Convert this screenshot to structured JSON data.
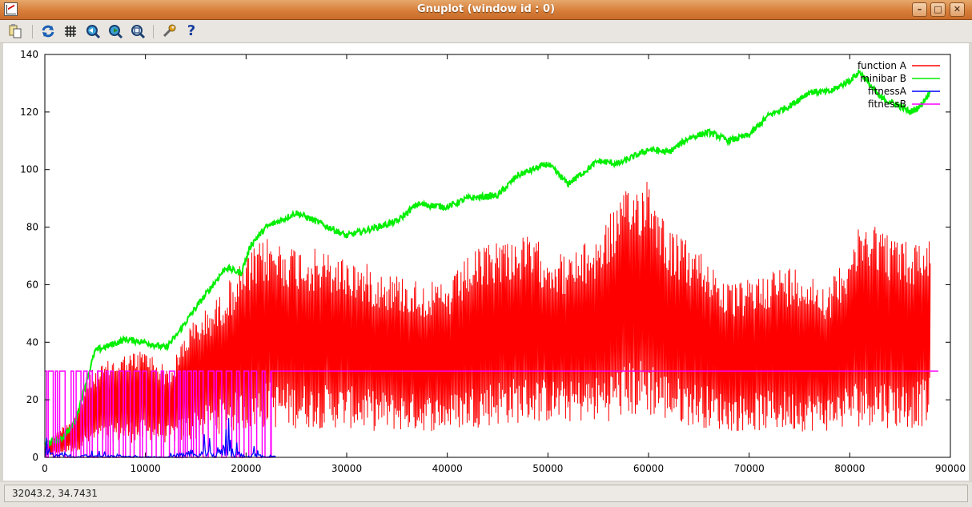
{
  "window": {
    "title": "Gnuplot (window id : 0)"
  },
  "toolbar": {
    "icons": [
      "copy-clipboard-icon",
      "replot-icon",
      "grid-icon",
      "zoom-previous-icon",
      "zoom-next-icon",
      "autoscale-icon",
      "configure-icon",
      "help-icon"
    ]
  },
  "status": {
    "coords": "32043.2,  34.7431"
  },
  "chart_data": {
    "type": "line",
    "title": "",
    "xlabel": "",
    "ylabel": "",
    "xlim": [
      0,
      90000
    ],
    "ylim": [
      0,
      140
    ],
    "xticks": [
      "0",
      "10000",
      "20000",
      "30000",
      "40000",
      "50000",
      "60000",
      "70000",
      "80000",
      "90000"
    ],
    "yticks": [
      "0",
      "20",
      "40",
      "60",
      "80",
      "100",
      "120",
      "140"
    ],
    "legend_position": "top-right",
    "series": [
      {
        "name": "function A",
        "color": "#ff0000",
        "envelope_x": [
          0,
          3000,
          4500,
          7000,
          10000,
          12500,
          14000,
          17000,
          20000,
          22000,
          25000,
          30000,
          33000,
          37000,
          40000,
          42000,
          45000,
          48000,
          52000,
          55000,
          57000,
          60000,
          62000,
          64000,
          66000,
          68000,
          70000,
          72000,
          75000,
          78000,
          80000,
          82000,
          84000,
          86000,
          88000
        ],
        "envelope_max": [
          5,
          15,
          30,
          35,
          38,
          30,
          45,
          55,
          70,
          77,
          74,
          70,
          66,
          62,
          60,
          70,
          77,
          77,
          70,
          78,
          90,
          100,
          80,
          75,
          70,
          60,
          62,
          66,
          67,
          60,
          75,
          85,
          78,
          75,
          78
        ],
        "envelope_min": [
          0,
          2,
          4,
          5,
          5,
          5,
          5,
          8,
          9,
          10,
          10,
          10,
          9,
          9,
          9,
          10,
          11,
          12,
          12,
          12,
          13,
          14,
          12,
          11,
          10,
          9,
          9,
          9,
          9,
          9,
          10,
          11,
          10,
          10,
          11
        ]
      },
      {
        "name": "minibar B",
        "color": "#00ee00",
        "x": [
          0,
          1500,
          3000,
          4000,
          5000,
          8000,
          10000,
          12000,
          13000,
          15000,
          18000,
          19500,
          20500,
          22000,
          25000,
          27000,
          30000,
          32000,
          35000,
          37000,
          40000,
          42000,
          45000,
          47000,
          50000,
          52000,
          55000,
          57000,
          60000,
          62000,
          64000,
          66000,
          68000,
          70000,
          72000,
          74000,
          76000,
          78000,
          80000,
          81000,
          83000,
          85000,
          86000,
          87000,
          88000
        ],
        "y": [
          5,
          6,
          12,
          25,
          37,
          41,
          40,
          38,
          42,
          52,
          66,
          64,
          74,
          80,
          85,
          82,
          77,
          79,
          82,
          88,
          87,
          90,
          91,
          98,
          102,
          95,
          103,
          102,
          107,
          106,
          111,
          113,
          110,
          112,
          119,
          122,
          127,
          127,
          131,
          134,
          125,
          122,
          120,
          122,
          127
        ]
      },
      {
        "name": "fitnessA",
        "color": "#0000ff",
        "x": [
          0,
          1000,
          2000,
          3000,
          4000,
          12000,
          14000,
          15000,
          16000,
          17000,
          18000,
          20000,
          21000,
          22000,
          23000
        ],
        "y": [
          3,
          1,
          2,
          0,
          1,
          0,
          2,
          1,
          3,
          1,
          6,
          0,
          2,
          0,
          1
        ]
      },
      {
        "name": "fitnessB",
        "color": "#ff00ff",
        "constant_y": 30,
        "switching_range": [
          0,
          22500
        ]
      }
    ]
  }
}
